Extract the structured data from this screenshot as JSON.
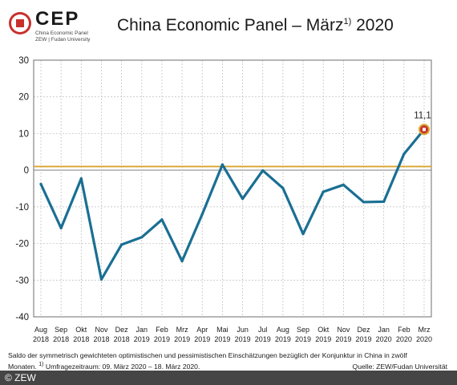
{
  "logo": {
    "word": "CEP",
    "line1": "China Economic Panel",
    "line2": "ZEW | Fudan University"
  },
  "title": {
    "main": "China Economic Panel – März",
    "sup": "1)",
    "year": "2020"
  },
  "chart_data": {
    "type": "line",
    "categories": [
      [
        "Aug",
        "2018"
      ],
      [
        "Sep",
        "2018"
      ],
      [
        "Okt",
        "2018"
      ],
      [
        "Nov",
        "2018"
      ],
      [
        "Dez",
        "2018"
      ],
      [
        "Jan",
        "2019"
      ],
      [
        "Feb",
        "2019"
      ],
      [
        "Mrz",
        "2019"
      ],
      [
        "Apr",
        "2019"
      ],
      [
        "Mai",
        "2019"
      ],
      [
        "Jun",
        "2019"
      ],
      [
        "Jul",
        "2019"
      ],
      [
        "Aug",
        "2019"
      ],
      [
        "Sep",
        "2019"
      ],
      [
        "Okt",
        "2019"
      ],
      [
        "Nov",
        "2019"
      ],
      [
        "Dez",
        "2019"
      ],
      [
        "Jan",
        "2020"
      ],
      [
        "Feb",
        "2020"
      ],
      [
        "Mrz",
        "2020"
      ]
    ],
    "values": [
      -3.8,
      -15.8,
      -2.3,
      -29.8,
      -20.3,
      -18.3,
      -13.5,
      -24.8,
      -12.0,
      1.5,
      -7.8,
      -0.1,
      -4.9,
      -17.4,
      -5.9,
      -4.0,
      -8.7,
      -8.6,
      4.4,
      11.1
    ],
    "ylim": [
      -40,
      30
    ],
    "yticks": [
      -40,
      -30,
      -20,
      -10,
      0,
      10,
      20,
      30
    ],
    "reference_line": 1.0,
    "highlight_label": "11,1",
    "colors": {
      "line": "#1a6f93",
      "reference": "#d9a52c",
      "marker": "#c9302c",
      "grid": "#bcbcbc"
    }
  },
  "footnote": {
    "line1": "Saldo der symmetrisch gewichteten optimistischen und pessimistischen Einschätzungen bezüglich der Konjunktur in China in zwölf",
    "line2_a": "Monaten.",
    "line2_sup": "1)",
    "line2_b": "Umfragezeitraum: 09. März 2020 – 18. März 2020.",
    "source": "Quelle: ZEW/Fudan Universität"
  },
  "copyright": "© ZEW"
}
